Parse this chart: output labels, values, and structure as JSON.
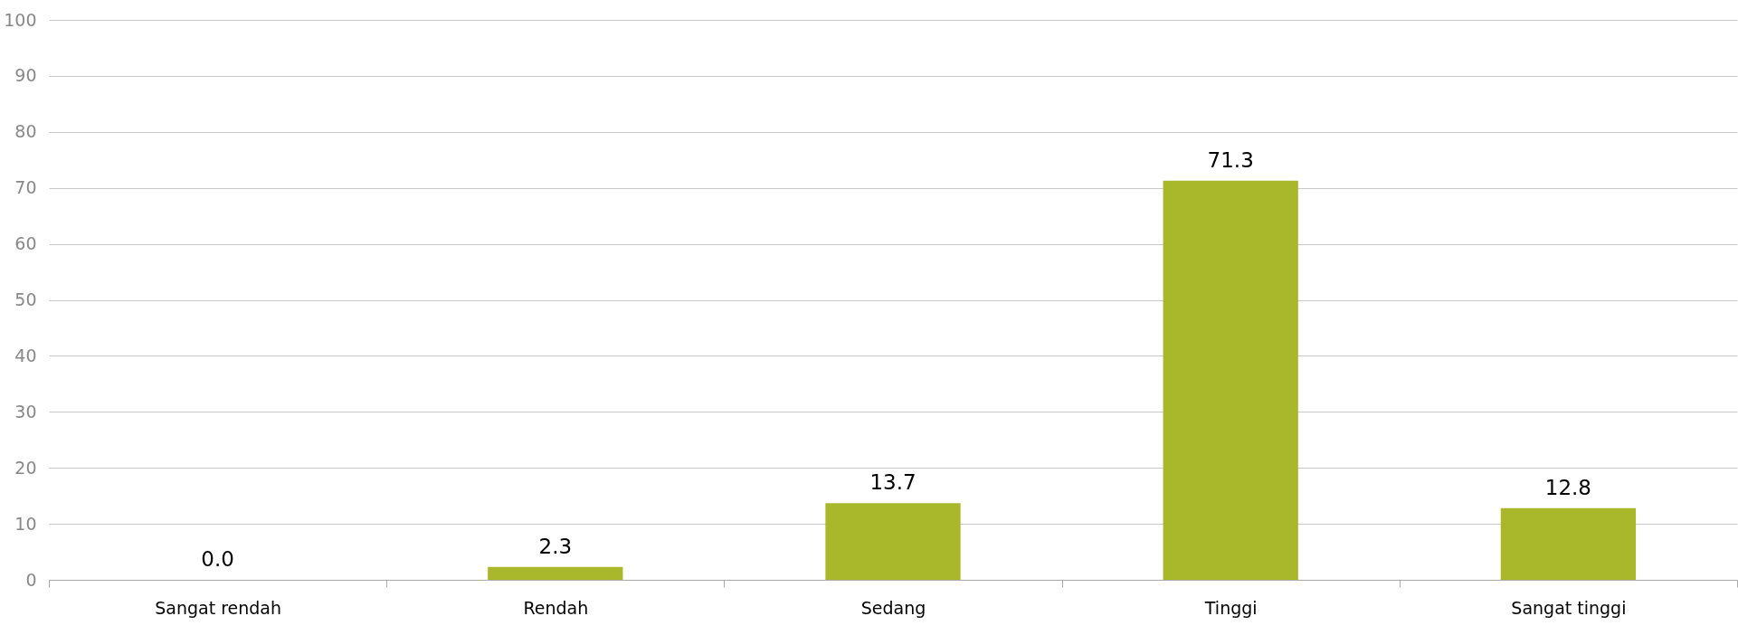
{
  "chart_data": {
    "type": "bar",
    "categories": [
      "Sangat rendah",
      "Rendah",
      "Sedang",
      "Tinggi",
      "Sangat tinggi"
    ],
    "values": [
      0.0,
      2.3,
      13.7,
      71.3,
      12.8
    ],
    "value_labels": [
      "0.0",
      "2.3",
      "13.7",
      "71.3",
      "12.8"
    ],
    "color": "#a8b82a",
    "ylim": [
      0,
      100
    ],
    "yticks": [
      0,
      10,
      20,
      30,
      40,
      50,
      60,
      70,
      80,
      90,
      100
    ],
    "grid": "y"
  }
}
